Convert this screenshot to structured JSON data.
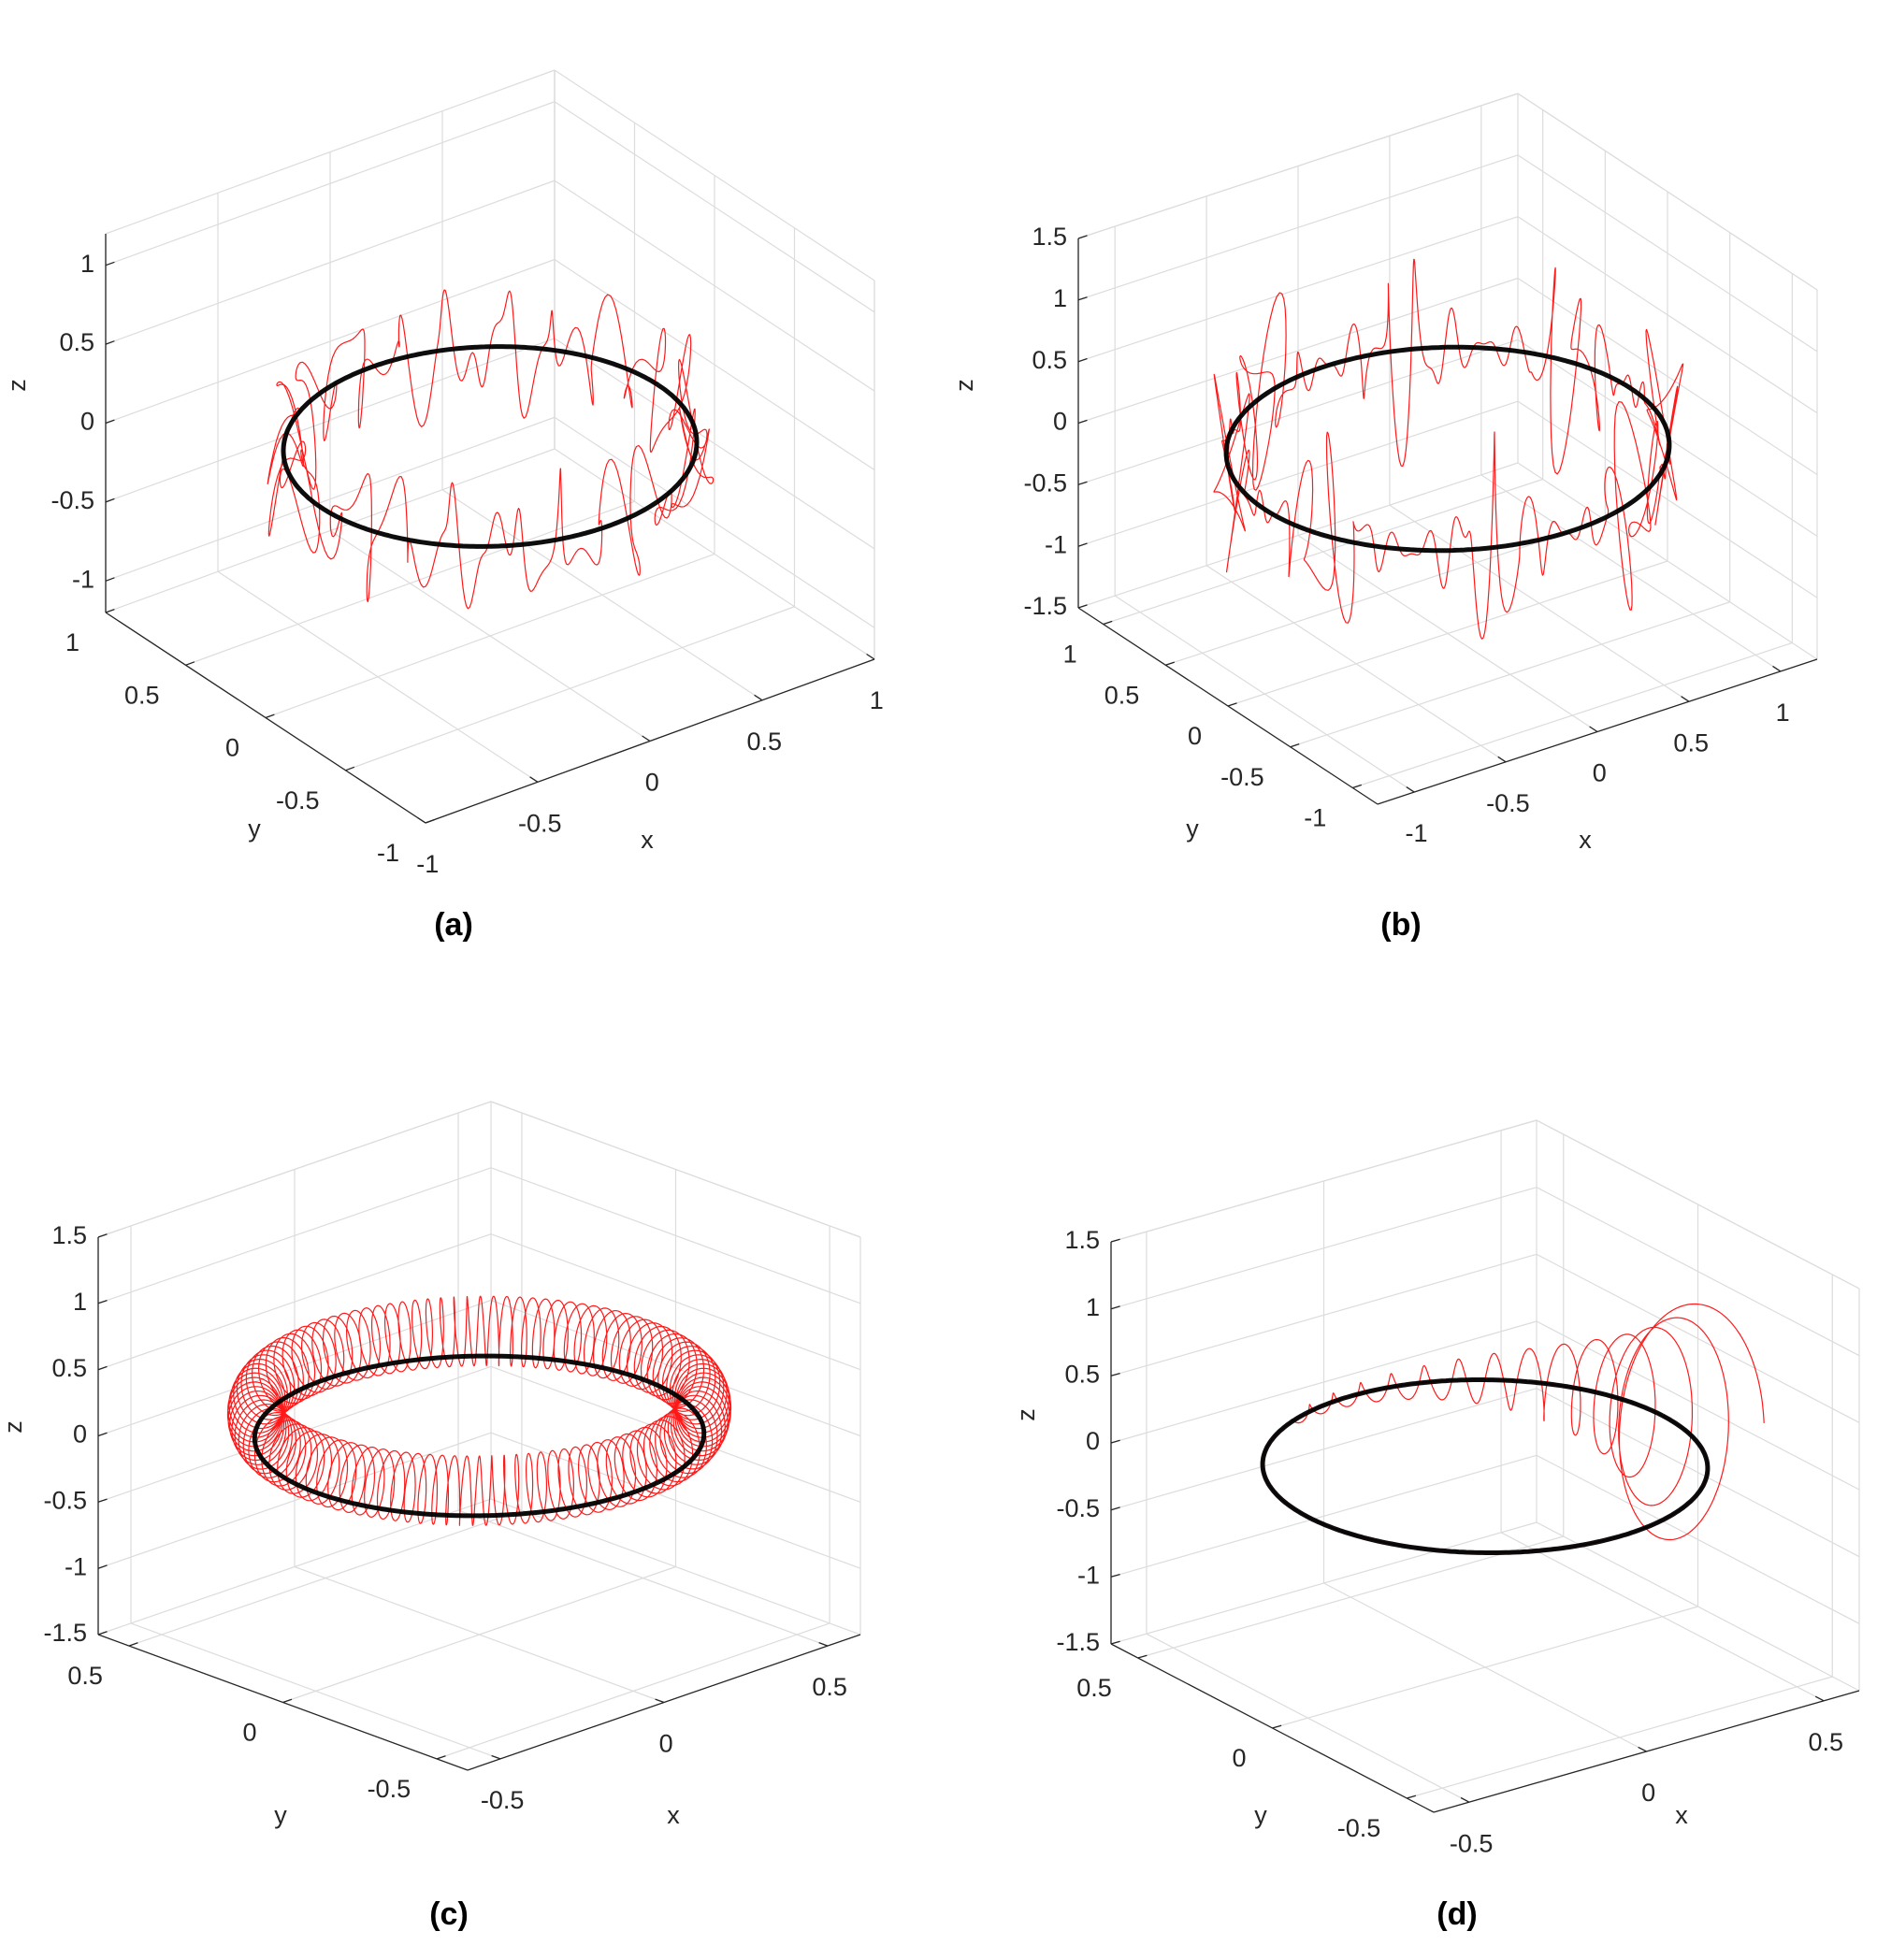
{
  "chart_data": [
    {
      "panel": "(a)",
      "type": "line3d",
      "xlabel": "x",
      "ylabel": "y",
      "zlabel": "z",
      "xlim": [
        -1,
        1
      ],
      "ylim": [
        -1,
        1
      ],
      "zlim": [
        -1.2,
        1.2
      ],
      "xticks": [
        -1,
        -0.5,
        0,
        0.5,
        1
      ],
      "yticks": [
        -1,
        -0.5,
        0,
        0.5,
        1
      ],
      "zticks": [
        -1,
        -0.5,
        0,
        0.5,
        1
      ],
      "grid": true,
      "series": [
        {
          "color": "#ff0000",
          "pattern": "chaotic",
          "radius": 0.75,
          "amp": 0.42
        },
        {
          "color": "#000000",
          "pattern": "circle",
          "radius": 0.75
        }
      ]
    },
    {
      "panel": "(b)",
      "type": "line3d",
      "xlabel": "x",
      "ylabel": "y",
      "zlabel": "z",
      "xlim": [
        -1.2,
        1.2
      ],
      "ylim": [
        -1.2,
        1.2
      ],
      "zlim": [
        -1.5,
        1.5
      ],
      "xticks": [
        -1,
        -0.5,
        0,
        0.5,
        1
      ],
      "yticks": [
        -1,
        -0.5,
        0,
        0.5,
        1
      ],
      "zticks": [
        -1.5,
        -1,
        -0.5,
        0,
        0.5,
        1,
        1.5
      ],
      "grid": true,
      "series": [
        {
          "color": "#ff0000",
          "pattern": "bursts",
          "radius": 1.0,
          "amp": 0.75
        },
        {
          "color": "#000000",
          "pattern": "circle",
          "radius": 1.0
        }
      ]
    },
    {
      "panel": "(c)",
      "type": "line3d",
      "xlabel": "x",
      "ylabel": "y",
      "zlabel": "z",
      "xlim": [
        -0.6,
        0.6
      ],
      "ylim": [
        -0.6,
        0.6
      ],
      "zlim": [
        -1.5,
        1.5
      ],
      "xticks": [
        -0.5,
        0,
        0.5
      ],
      "yticks": [
        -0.5,
        0,
        0.5
      ],
      "zticks": [
        -1.5,
        -1,
        -0.5,
        0,
        0.5,
        1,
        1.5
      ],
      "grid": true,
      "series": [
        {
          "color": "#ff0000",
          "pattern": "coil",
          "radius": 0.5,
          "amp": 0.35
        },
        {
          "color": "#000000",
          "pattern": "circle",
          "radius": 0.5
        }
      ]
    },
    {
      "panel": "(d)",
      "type": "line3d",
      "xlabel": "x",
      "ylabel": "y",
      "zlabel": "z",
      "xlim": [
        -0.6,
        0.6
      ],
      "ylim": [
        -0.6,
        0.6
      ],
      "zlim": [
        -1.5,
        1.5
      ],
      "xticks": [
        -0.5,
        0,
        0.5
      ],
      "yticks": [
        -0.5,
        0,
        0.5
      ],
      "zticks": [
        -1.5,
        -1,
        -0.5,
        0,
        0.5,
        1,
        1.5
      ],
      "grid": true,
      "series": [
        {
          "color": "#ff0000",
          "pattern": "decay",
          "radius": 0.5,
          "amp": 1.0
        },
        {
          "color": "#000000",
          "pattern": "circle",
          "radius": 0.5
        }
      ]
    }
  ]
}
